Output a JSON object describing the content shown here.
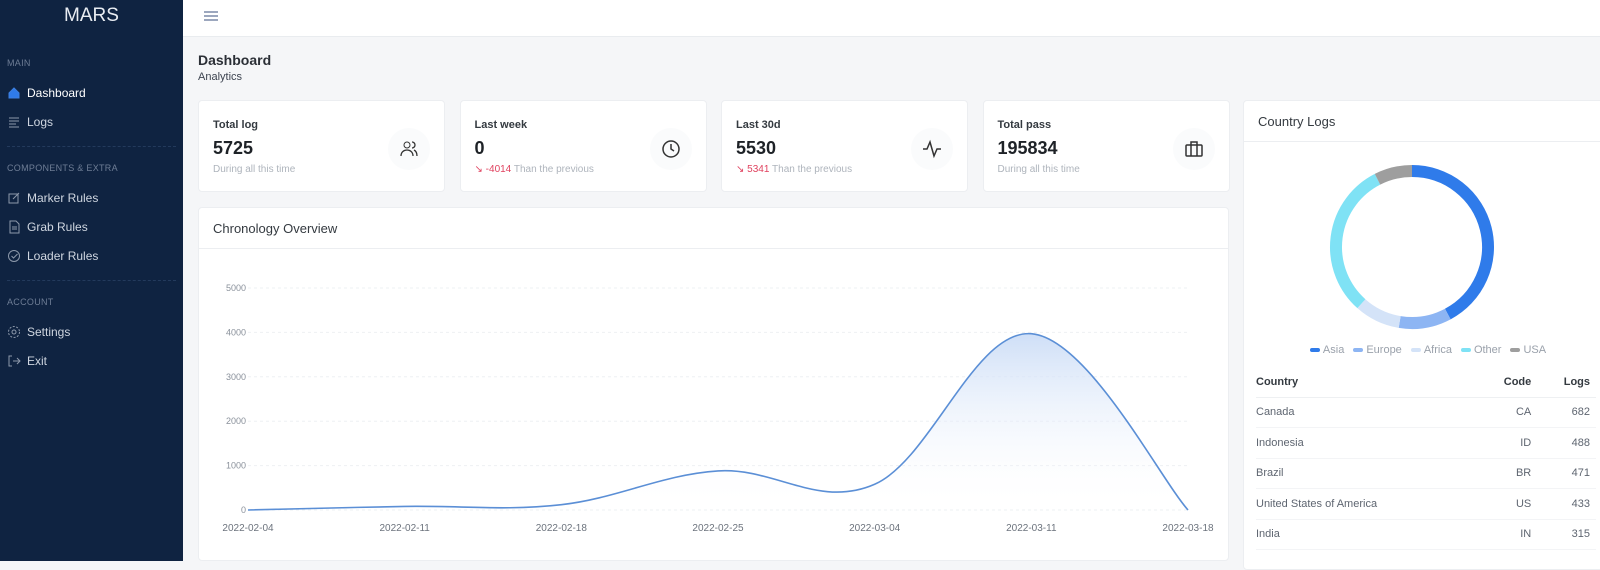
{
  "app": {
    "brand": "MARS"
  },
  "sidebar": {
    "sections": [
      {
        "title": "MAIN",
        "items": [
          {
            "label": "Dashboard",
            "icon": "home-icon",
            "active": true
          },
          {
            "label": "Logs",
            "icon": "list-icon"
          }
        ]
      },
      {
        "title": "COMPONENTS & EXTRA",
        "items": [
          {
            "label": "Marker Rules",
            "icon": "edit-icon"
          },
          {
            "label": "Grab Rules",
            "icon": "file-icon"
          },
          {
            "label": "Loader Rules",
            "icon": "check-circle-icon"
          }
        ]
      },
      {
        "title": "ACCOUNT",
        "items": [
          {
            "label": "Settings",
            "icon": "gear-icon"
          },
          {
            "label": "Exit",
            "icon": "logout-icon"
          }
        ]
      }
    ]
  },
  "header": {
    "title": "Dashboard",
    "subtitle": "Analytics"
  },
  "stats": [
    {
      "label": "Total log",
      "value": "5725",
      "delta": "",
      "note": "During all this time",
      "icon": "users-icon"
    },
    {
      "label": "Last week",
      "value": "0",
      "delta": "-4014",
      "note": "Than the previous",
      "icon": "clock-icon"
    },
    {
      "label": "Last 30d",
      "value": "5530",
      "delta": "5341",
      "note": "Than the previous",
      "icon": "activity-icon"
    },
    {
      "label": "Total pass",
      "value": "195834",
      "delta": "",
      "note": "During all this time",
      "icon": "briefcase-icon"
    }
  ],
  "chronology": {
    "title": "Chronology Overview"
  },
  "country": {
    "title": "Country Logs",
    "columns": [
      "Country",
      "Code",
      "Logs"
    ],
    "rows": [
      [
        "Canada",
        "CA",
        "682"
      ],
      [
        "Indonesia",
        "ID",
        "488"
      ],
      [
        "Brazil",
        "BR",
        "471"
      ],
      [
        "United States of America",
        "US",
        "433"
      ],
      [
        "India",
        "IN",
        "315"
      ]
    ]
  },
  "colors": {
    "accent": "#2f7bea",
    "sidebar": "#0f2341",
    "negative": "#e0425f"
  },
  "chart_data": [
    {
      "type": "area",
      "title": "Chronology Overview",
      "x": [
        "2022-02-04",
        "2022-02-11",
        "2022-02-18",
        "2022-02-25",
        "2022-03-04",
        "2022-03-11",
        "2022-03-18"
      ],
      "values": [
        0,
        80,
        120,
        880,
        580,
        3970,
        0
      ],
      "yticks": [
        "0",
        "1000",
        "2000",
        "3000",
        "4000",
        "5000"
      ],
      "ylim": [
        0,
        5000
      ],
      "grid": true,
      "color": "#5b8fd6"
    },
    {
      "type": "pie",
      "title": "Country Logs",
      "legend_position": "bottom",
      "slices": [
        {
          "name": "Asia",
          "value": 42.2,
          "color": "#2f7bea"
        },
        {
          "name": "Europe",
          "value": 10.4,
          "color": "#8db5f3"
        },
        {
          "name": "Africa",
          "value": 9.0,
          "color": "#d4e3f8"
        },
        {
          "name": "Other",
          "value": 30.9,
          "color": "#7fe2f5"
        },
        {
          "name": "USA",
          "value": 7.5,
          "color": "#9e9e9e"
        }
      ]
    }
  ]
}
